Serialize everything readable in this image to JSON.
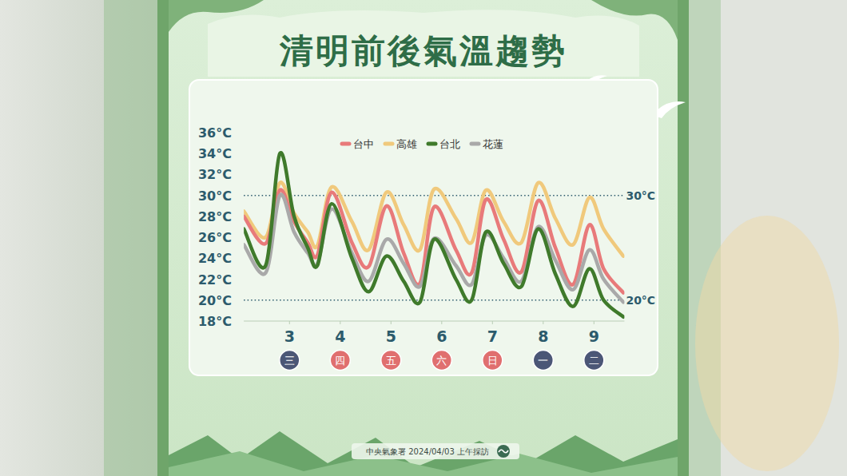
{
  "chart_data": {
    "type": "line",
    "title": "清明前後氣溫趨勢",
    "source": "中央氣象署 2024/04/03 上午採訪",
    "x": [
      2.1,
      2.53,
      2.81,
      3.09,
      3.36,
      3.55,
      3.83,
      4.23,
      4.56,
      4.91,
      5.25,
      5.57,
      5.85,
      6.28,
      6.59,
      6.87,
      7.22,
      7.57,
      7.9,
      8.24,
      8.59,
      8.91,
      9.19,
      9.58
    ],
    "xlim": [
      2.1,
      9.6
    ],
    "xticks": [
      3,
      4,
      5,
      6,
      7,
      8,
      9
    ],
    "x_sublabels": [
      {
        "label": "三",
        "color": "#4b5676"
      },
      {
        "label": "四",
        "color": "#e06f6f"
      },
      {
        "label": "五",
        "color": "#e06f6f"
      },
      {
        "label": "六",
        "color": "#e06f6f"
      },
      {
        "label": "日",
        "color": "#e06f6f"
      },
      {
        "label": "一",
        "color": "#4b5676"
      },
      {
        "label": "二",
        "color": "#4b5676"
      }
    ],
    "ylim": [
      18,
      36
    ],
    "yticks": [
      {
        "value": 18,
        "label": "18°C"
      },
      {
        "value": 20,
        "label": "20°C"
      },
      {
        "value": 22,
        "label": "22°C"
      },
      {
        "value": 24,
        "label": "24°C"
      },
      {
        "value": 26,
        "label": "26°C"
      },
      {
        "value": 28,
        "label": "28°C"
      },
      {
        "value": 30,
        "label": "30°C"
      },
      {
        "value": 32,
        "label": "32°C"
      },
      {
        "value": 34,
        "label": "34°C"
      },
      {
        "value": 36,
        "label": "36°C"
      }
    ],
    "ref_lines": [
      {
        "value": 30,
        "label": "30°C"
      },
      {
        "value": 20,
        "label": "20°C"
      }
    ],
    "grid": false,
    "legend": "top",
    "series": [
      {
        "name": "台中",
        "color": "#e87a7a",
        "values": [
          28.0,
          25.4,
          30.5,
          27.5,
          25.5,
          24.3,
          30.3,
          25.5,
          23.2,
          29.0,
          24.5,
          21.6,
          28.9,
          24.8,
          22.6,
          29.6,
          25.8,
          22.7,
          29.5,
          25.0,
          21.5,
          27.2,
          23.0,
          20.7
        ]
      },
      {
        "name": "高雄",
        "color": "#f0c97c",
        "values": [
          28.5,
          26.0,
          31.2,
          28.3,
          26.5,
          25.2,
          30.8,
          27.5,
          24.8,
          30.3,
          27.2,
          24.8,
          30.6,
          27.8,
          25.5,
          30.5,
          27.5,
          25.5,
          31.2,
          27.8,
          25.3,
          29.8,
          26.8,
          24.2
        ]
      },
      {
        "name": "台北",
        "color": "#3f7a2b",
        "values": [
          26.8,
          23.3,
          34.0,
          28.0,
          25.0,
          23.3,
          29.2,
          24.0,
          20.8,
          24.2,
          21.8,
          19.8,
          25.8,
          22.0,
          20.0,
          26.5,
          23.5,
          21.3,
          26.8,
          22.5,
          19.4,
          23.0,
          20.0,
          18.4
        ]
      },
      {
        "name": "花蓮",
        "color": "#a9a9a9",
        "values": [
          25.3,
          22.6,
          30.0,
          26.5,
          24.5,
          23.5,
          28.7,
          24.5,
          21.8,
          25.8,
          23.5,
          21.3,
          25.9,
          23.3,
          21.5,
          26.2,
          24.0,
          21.8,
          27.0,
          23.8,
          21.0,
          24.8,
          22.0,
          19.8
        ]
      }
    ]
  }
}
